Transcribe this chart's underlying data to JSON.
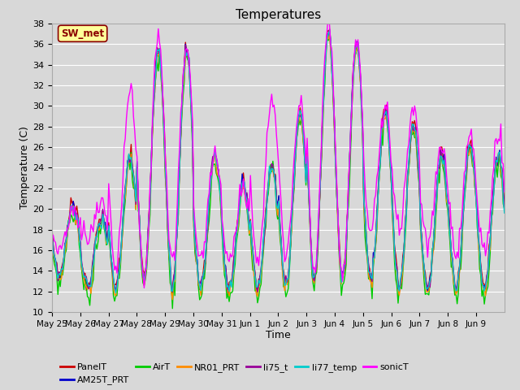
{
  "title": "Temperatures",
  "xlabel": "Time",
  "ylabel": "Temperature (C)",
  "ylim": [
    10,
    38
  ],
  "annotation_text": "SW_met",
  "annotation_color": "#8B0000",
  "annotation_bg": "#FFFF99",
  "series": {
    "PanelT": {
      "color": "#CC0000",
      "lw": 1.0
    },
    "AM25T_PRT": {
      "color": "#0000CC",
      "lw": 1.0
    },
    "AirT": {
      "color": "#00CC00",
      "lw": 1.0
    },
    "NR01_PRT": {
      "color": "#FF8C00",
      "lw": 1.0
    },
    "li75_t": {
      "color": "#990099",
      "lw": 1.0
    },
    "li77_temp": {
      "color": "#00CCCC",
      "lw": 1.0
    },
    "sonicT": {
      "color": "#FF00FF",
      "lw": 1.0
    }
  },
  "bg_color": "#D8D8D8",
  "plot_bg": "#D8D8D8",
  "grid_color": "#FFFFFF",
  "xtick_labels": [
    "May 25",
    "May 26",
    "May 27",
    "May 28",
    "May 29",
    "May 30",
    "May 31",
    "Jun 1",
    "Jun 2",
    "Jun 3",
    "Jun 4",
    "Jun 5",
    "Jun 6",
    "Jun 7",
    "Jun 8",
    "Jun 9"
  ],
  "ytick_vals": [
    10,
    12,
    14,
    16,
    18,
    20,
    22,
    24,
    26,
    28,
    30,
    32,
    34,
    36,
    38
  ],
  "legend_order": [
    "PanelT",
    "AM25T_PRT",
    "AirT",
    "NR01_PRT",
    "li75_t",
    "li77_temp",
    "sonicT"
  ]
}
